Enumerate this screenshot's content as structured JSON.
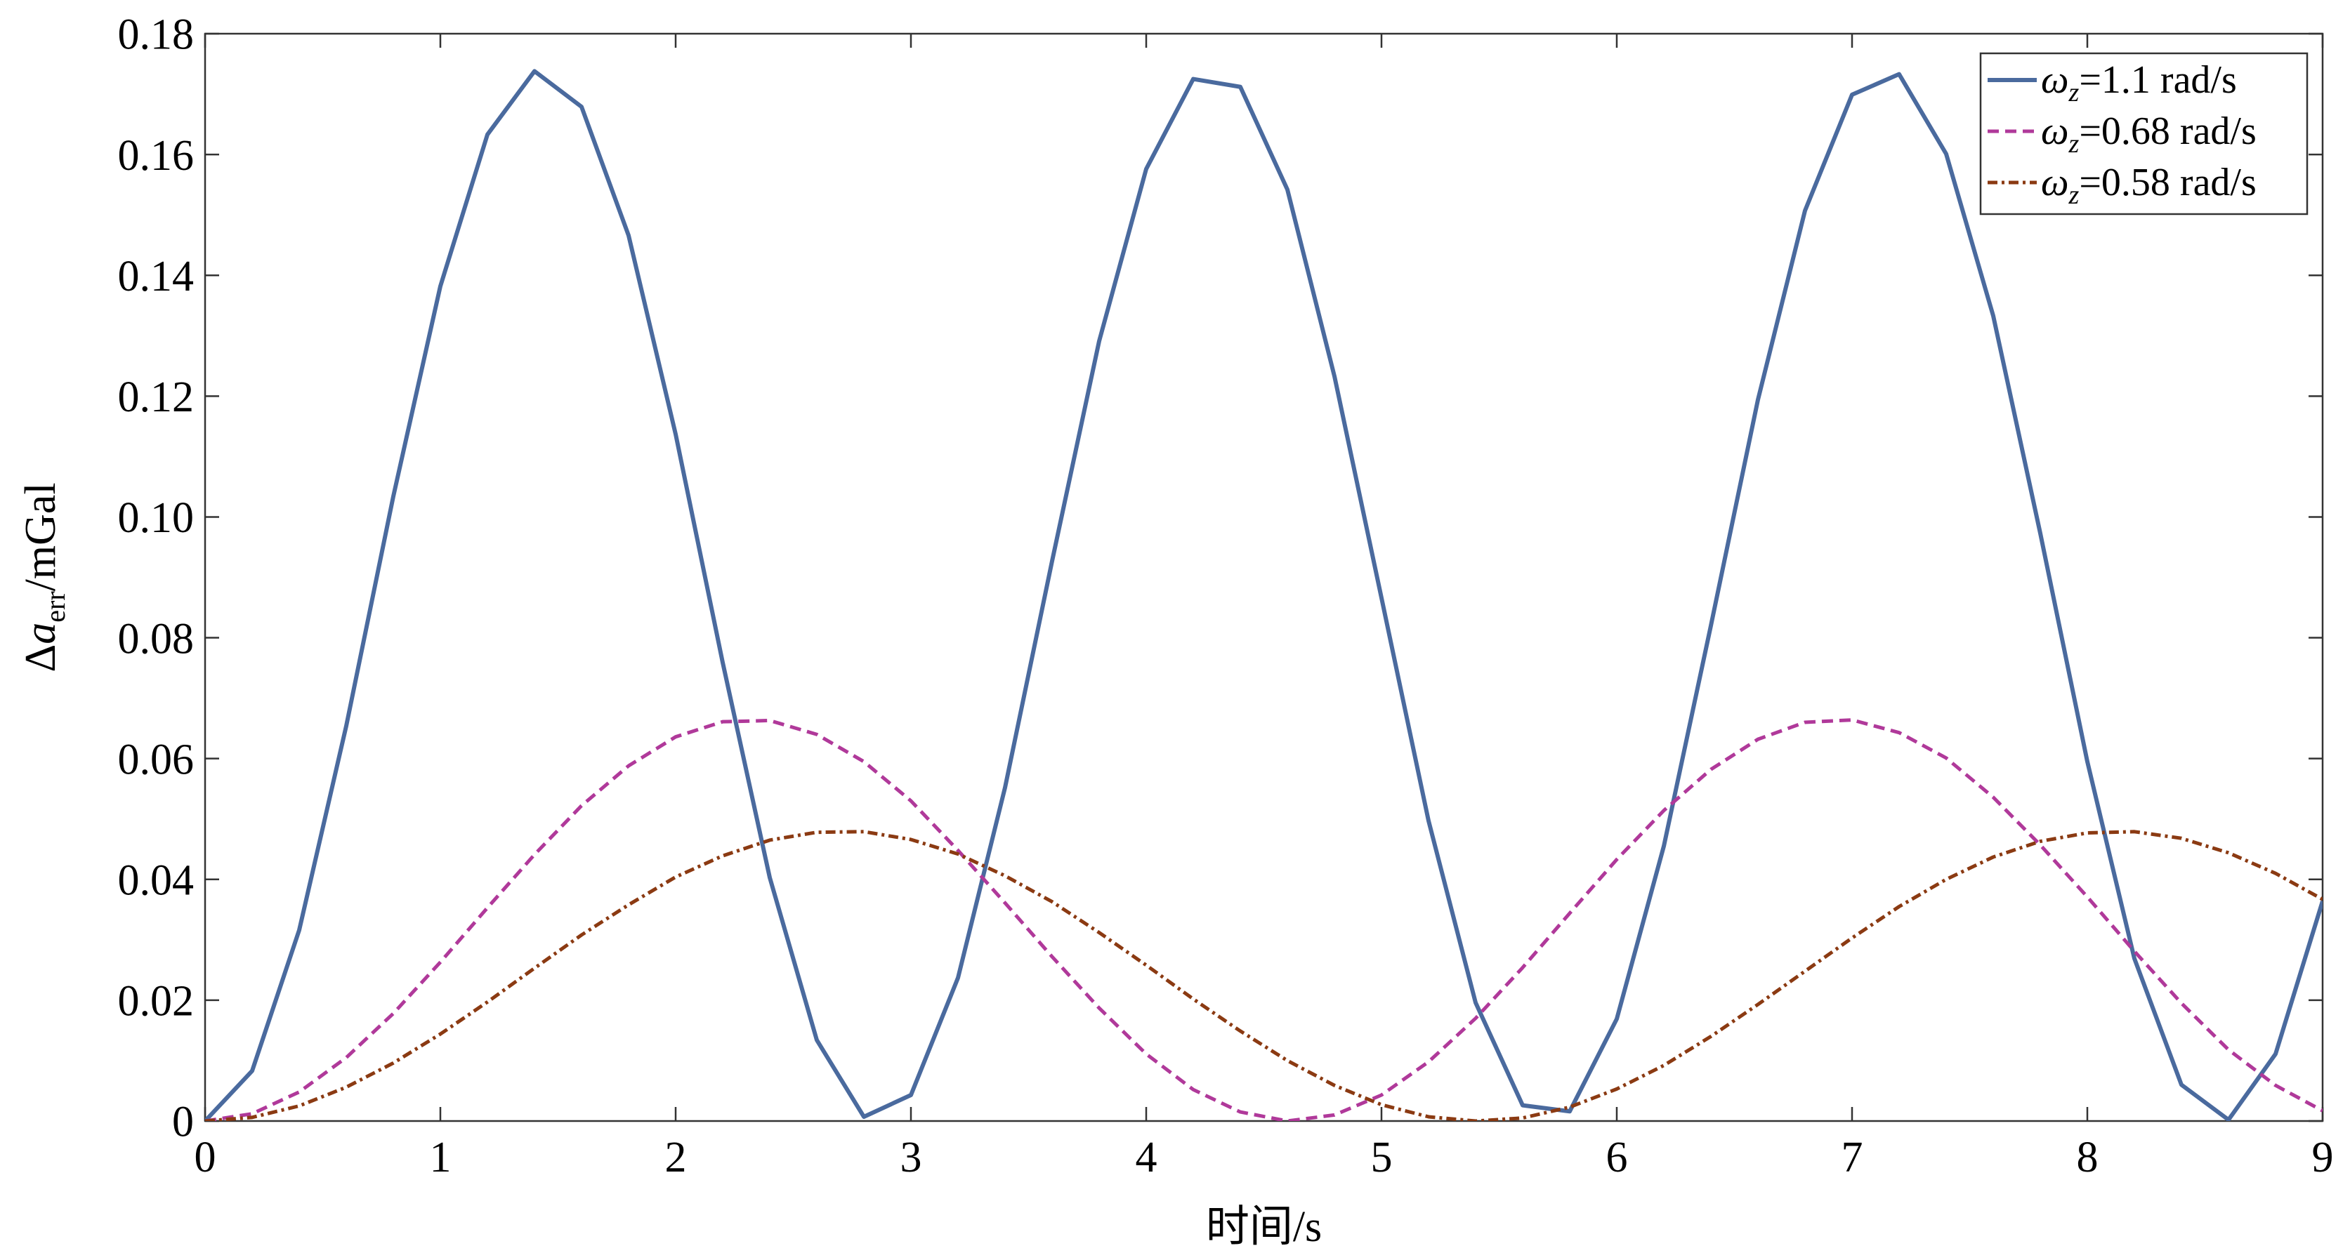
{
  "chart_data": {
    "type": "line",
    "ylabel": "Δaerr/mGal",
    "xlabel": "时间/s",
    "x": [
      0,
      0.2,
      0.4,
      0.6,
      0.8,
      1.0,
      1.2,
      1.4,
      1.6,
      1.8,
      2.0,
      2.2,
      2.4,
      2.6,
      2.8,
      3.0,
      3.2,
      3.4,
      3.6,
      3.8,
      4.0,
      4.2,
      4.4,
      4.6,
      4.8,
      5.0,
      5.2,
      5.4,
      5.6,
      5.8,
      6.0,
      6.2,
      6.4,
      6.6,
      6.8,
      7.0,
      7.2,
      7.4,
      7.6,
      7.8,
      8.0,
      8.2,
      8.4,
      8.6,
      8.8,
      9.0
    ],
    "series": [
      {
        "name": "ωz=1.1 rad/s",
        "color": "#4a6a9e",
        "linestyle": "solid",
        "values": [
          0,
          0.0083,
          0.0316,
          0.0654,
          0.1034,
          0.1382,
          0.1633,
          0.1738,
          0.1679,
          0.1466,
          0.1137,
          0.0759,
          0.0403,
          0.0134,
          0.0007,
          0.0043,
          0.0237,
          0.0552,
          0.0927,
          0.1291,
          0.1576,
          0.1725,
          0.1712,
          0.1542,
          0.1233,
          0.0866,
          0.0497,
          0.0196,
          0.0026,
          0.0016,
          0.0169,
          0.0455,
          0.082,
          0.1194,
          0.1507,
          0.1699,
          0.1733,
          0.1601,
          0.1333,
          0.0973,
          0.0595,
          0.0269,
          0.006,
          0.0002,
          0.0111,
          0.0364
        ]
      },
      {
        "name": "ωz=0.68 rad/s",
        "color": "#b0399a",
        "linestyle": "dashed",
        "values": [
          0,
          0.0012,
          0.0048,
          0.0105,
          0.0178,
          0.0263,
          0.0353,
          0.0441,
          0.0522,
          0.0588,
          0.0636,
          0.0661,
          0.0663,
          0.064,
          0.0595,
          0.053,
          0.0448,
          0.0361,
          0.0272,
          0.0187,
          0.0111,
          0.0052,
          0.0015,
          0.0,
          0.001,
          0.0043,
          0.0098,
          0.017,
          0.0254,
          0.0344,
          0.0433,
          0.0514,
          0.0582,
          0.0632,
          0.066,
          0.0664,
          0.0643,
          0.0601,
          0.0536,
          0.0457,
          0.0371,
          0.0281,
          0.0195,
          0.0118,
          0.0059,
          0.0017
        ]
      },
      {
        "name": "ωz=0.58 rad/s",
        "color": "#8b3a12",
        "linestyle": "dashdot",
        "values": [
          0,
          0.0006,
          0.0025,
          0.0056,
          0.0096,
          0.0144,
          0.0197,
          0.0253,
          0.0308,
          0.0358,
          0.0404,
          0.0439,
          0.0465,
          0.0478,
          0.0479,
          0.0466,
          0.0442,
          0.0406,
          0.0363,
          0.0312,
          0.0258,
          0.0202,
          0.0149,
          0.01,
          0.0059,
          0.0027,
          0.0007,
          0.0,
          0.0005,
          0.0023,
          0.0053,
          0.0092,
          0.014,
          0.0193,
          0.0248,
          0.0303,
          0.0355,
          0.04,
          0.0437,
          0.0463,
          0.0477,
          0.0479,
          0.0468,
          0.0444,
          0.041,
          0.0367
        ]
      }
    ],
    "xlim": [
      0,
      9
    ],
    "xticks": [
      0,
      1,
      2,
      3,
      4,
      5,
      6,
      7,
      8,
      9
    ],
    "ylim": [
      0,
      0.18
    ],
    "yticks": [
      0,
      0.02,
      0.04,
      0.06,
      0.08,
      {
        "value": 0.1,
        "label": "0.10"
      },
      0.12,
      0.14,
      0.16,
      0.18
    ],
    "grid": false,
    "legend": "upper right"
  }
}
